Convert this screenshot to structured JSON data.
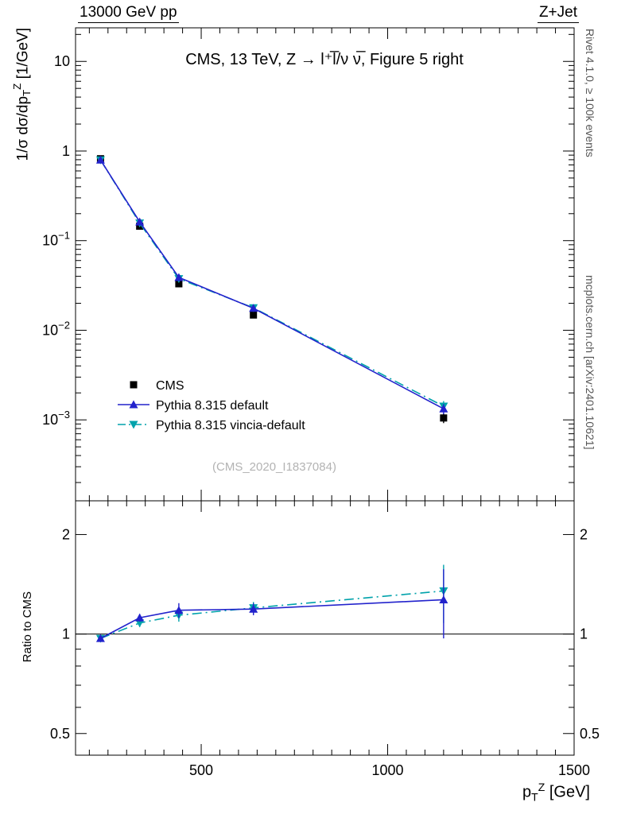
{
  "header": {
    "left": "13000 GeV pp",
    "right": "Z+Jet"
  },
  "title": "CMS, 13 TeV, Z → l⁺l̅/ν ν̅, Figure 5 right",
  "watermark": "(CMS_2020_I1837084)",
  "side_notes": {
    "top_right": "Rivet 4.1.0, ≥ 100k events",
    "bottom_right": "mcplots.cern.ch [arXiv:2401.10621]"
  },
  "axes": {
    "y_label_prefix": "1/σ dσ/dp",
    "y_label_sub": "T",
    "y_label_sup": "Z",
    "y_label_suffix": " [1/GeV]",
    "x_label_prefix": "p",
    "x_label_sub": "T",
    "x_label_sup": "Z",
    "x_label_suffix": " [GeV]",
    "ratio_label": "Ratio to CMS"
  },
  "chart_data": {
    "type": "line",
    "title": "CMS, 13 TeV, Z → l+l-/ν ν, Figure 5 right",
    "x_label": "p_T^Z [GeV]",
    "y_label": "1/σ dσ/dp_T^Z [1/GeV]",
    "ratio_label": "Ratio to CMS",
    "x_scale": "linear",
    "y_scale": "log",
    "ratio_scale": "log",
    "x_range": [
      163,
      1500
    ],
    "y_range": [
      0.000125,
      23.7
    ],
    "ratio_range": [
      0.43,
      2.53
    ],
    "x_ticks_labeled": [
      500,
      1000,
      1500
    ],
    "y_ticks_labeled": [
      10,
      1,
      0.1,
      0.01,
      0.001
    ],
    "ratio_ticks_labeled": [
      2,
      1,
      0.5
    ],
    "ratio_reference": 1,
    "x": [
      230,
      335,
      440,
      640,
      1150
    ],
    "series": [
      {
        "label": "CMS",
        "color": "#000000",
        "marker": "square",
        "line": "none",
        "is_reference": true,
        "values": [
          0.82,
          0.145,
          0.033,
          0.0148,
          0.00105
        ],
        "errors": [
          0.02,
          0.005,
          0.0015,
          0.0008,
          0.00013
        ]
      },
      {
        "label": "Pythia 8.315 vincia-default",
        "color": "#00a2ab",
        "marker": "triangle-down",
        "line": "dashdot",
        "is_reference": false,
        "values": [
          0.795,
          0.157,
          0.0376,
          0.0178,
          0.00142
        ],
        "errors": [
          0.012,
          0.004,
          0.0013,
          0.0007,
          0.0002
        ],
        "ratio": [
          0.97,
          1.08,
          1.14,
          1.2,
          1.35
        ],
        "ratio_errors": [
          0.015,
          0.03,
          0.05,
          0.05,
          0.27
        ]
      },
      {
        "label": "Pythia 8.315 default",
        "color": "#2222cc",
        "marker": "triangle-up",
        "line": "solid",
        "is_reference": false,
        "values": [
          0.795,
          0.162,
          0.0389,
          0.0176,
          0.00133
        ],
        "errors": [
          0.012,
          0.004,
          0.0013,
          0.0007,
          0.00017
        ],
        "ratio": [
          0.97,
          1.12,
          1.18,
          1.19,
          1.27
        ],
        "ratio_errors": [
          0.015,
          0.03,
          0.06,
          0.05,
          0.3
        ]
      }
    ],
    "legend_order": [
      "CMS",
      "Pythia 8.315 default",
      "Pythia 8.315 vincia-default"
    ]
  }
}
